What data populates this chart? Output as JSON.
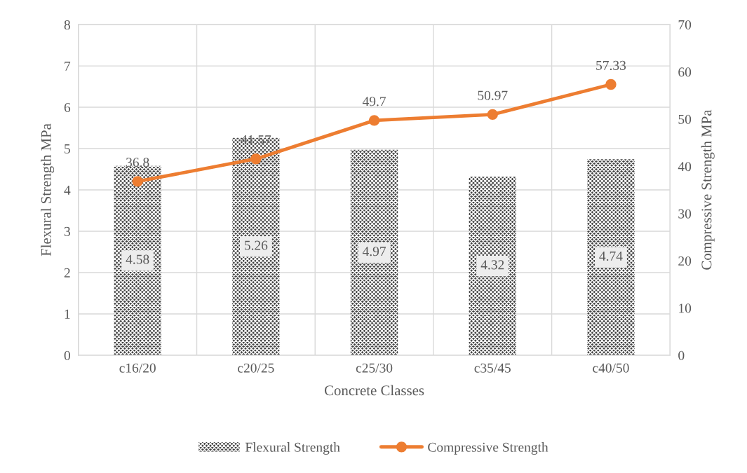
{
  "chart_data": {
    "type": "bar",
    "categories": [
      "c16/20",
      "c20/25",
      "c25/30",
      "c35/45",
      "c40/50"
    ],
    "xlabel": "Concrete Classes",
    "ylabel": "Flexural Strength MPa",
    "y2label": "Compressive Strength MPa",
    "series": [
      {
        "name": "Flexural Strength",
        "color": "#404040",
        "values": [
          4.58,
          5.26,
          4.97,
          4.32,
          4.74
        ]
      },
      {
        "name": "Compressive Strength",
        "type": "line",
        "axis": "y2",
        "color": "#ed7d31",
        "values": [
          36.8,
          41.57,
          49.7,
          50.97,
          57.33
        ]
      }
    ],
    "ylim": [
      0,
      8
    ],
    "yticks": [
      0,
      1,
      2,
      3,
      4,
      5,
      6,
      7,
      8
    ],
    "y2lim": [
      0,
      70
    ],
    "y2ticks": [
      0,
      10,
      20,
      30,
      40,
      50,
      60,
      70
    ],
    "grid": true,
    "legend": "bottom",
    "data_labels": true,
    "marker": "circle",
    "line_style": "solid"
  }
}
